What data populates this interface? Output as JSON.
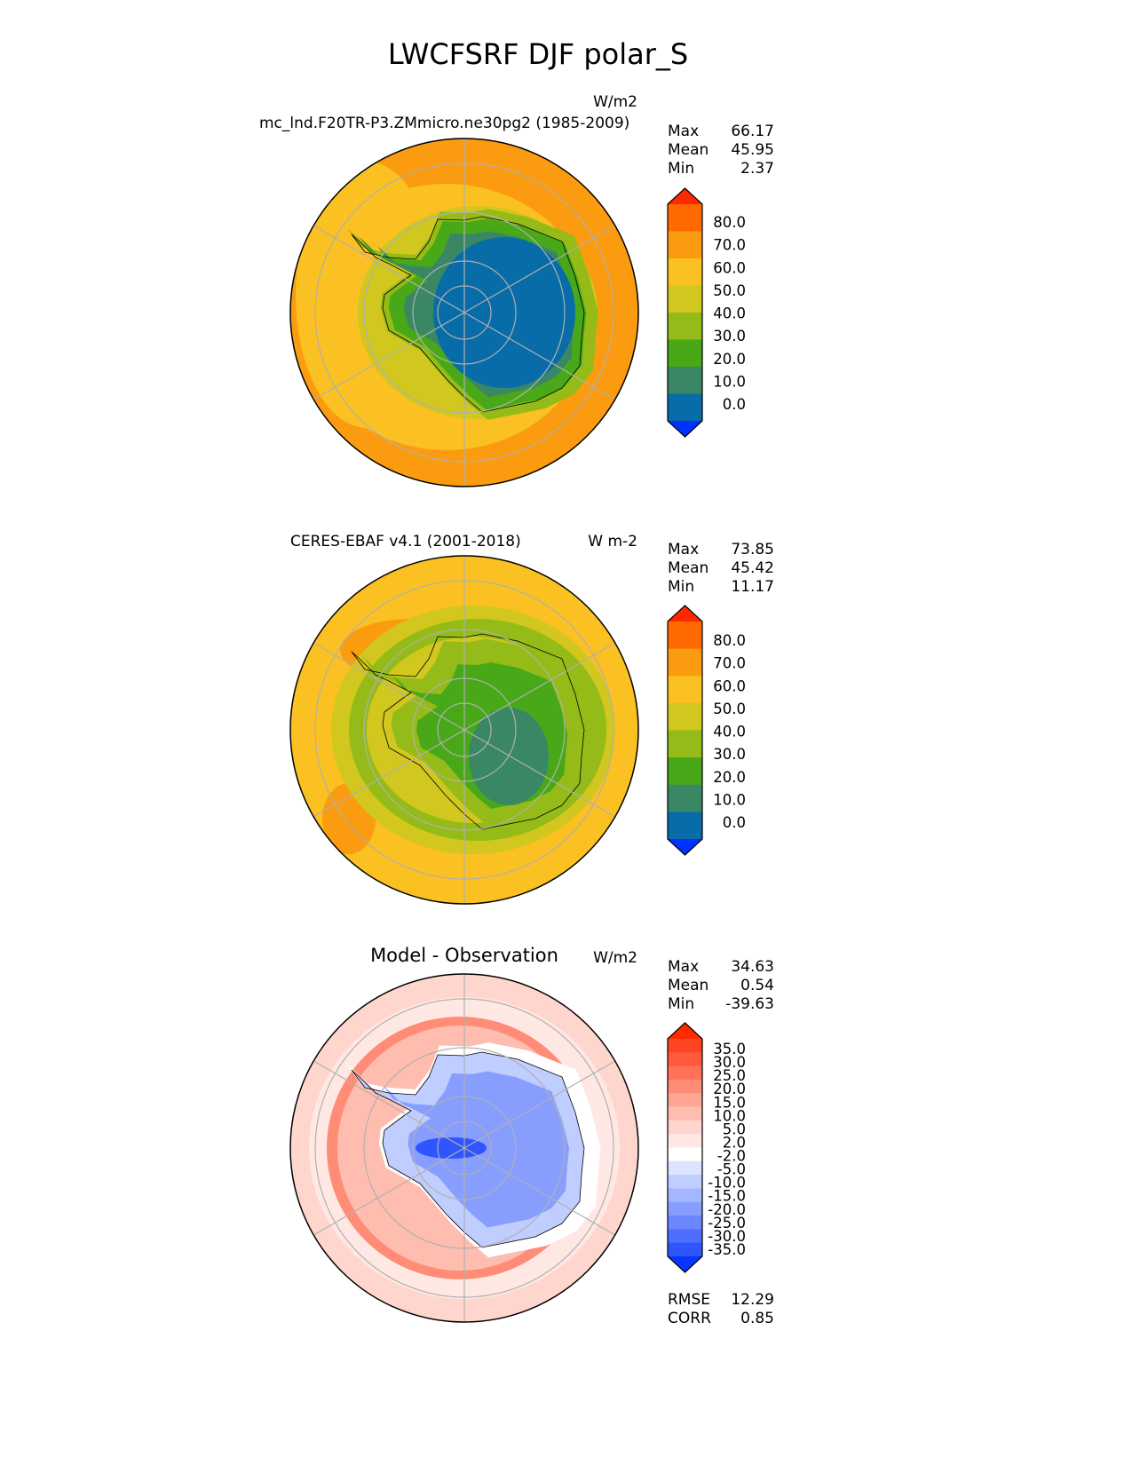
{
  "title": "LWCFSRF DJF polar_S",
  "panels": [
    {
      "left_title": "mc_lnd.F20TR-P3.ZMmicro.ne30pg2 (1985-2009)",
      "units": "W/m2",
      "stats": [
        {
          "label": "Max",
          "value": "66.17"
        },
        {
          "label": "Mean",
          "value": "45.95"
        },
        {
          "label": "Min",
          "value": "2.37"
        }
      ]
    },
    {
      "left_title": "CERES-EBAF v4.1 (2001-2018)",
      "units": "W m-2",
      "stats": [
        {
          "label": "Max",
          "value": "73.85"
        },
        {
          "label": "Mean",
          "value": "45.42"
        },
        {
          "label": "Min",
          "value": "11.17"
        }
      ]
    },
    {
      "center_title": "Model - Observation",
      "units": "W/m2",
      "stats": [
        {
          "label": "Max",
          "value": "34.63"
        },
        {
          "label": "Mean",
          "value": "0.54"
        },
        {
          "label": "Min",
          "value": "-39.63"
        }
      ],
      "metrics": [
        {
          "label": "RMSE",
          "value": "12.29"
        },
        {
          "label": "CORR",
          "value": "0.85"
        }
      ]
    }
  ],
  "colorbars": {
    "field": {
      "labels": [
        "80.0",
        "70.0",
        "60.0",
        "50.0",
        "40.0",
        "30.0",
        "20.0",
        "10.0",
        "0.0"
      ],
      "colors": [
        "#ff2800",
        "#ff6a00",
        "#fb9b0f",
        "#fbc021",
        "#d2c71e",
        "#94bb18",
        "#48a818",
        "#398764",
        "#086ca8",
        "#0032ff"
      ]
    },
    "diff": {
      "labels": [
        "35.0",
        "30.0",
        "25.0",
        "20.0",
        "15.0",
        "10.0",
        "5.0",
        "2.0",
        "-2.0",
        "-5.0",
        "-10.0",
        "-15.0",
        "-20.0",
        "-25.0",
        "-30.0",
        "-35.0"
      ],
      "colors": [
        "#ff2a00",
        "#ff4422",
        "#ff5a3d",
        "#ff7258",
        "#ff8c76",
        "#ffa594",
        "#ffbdb0",
        "#ffd6cd",
        "#ffe8e4",
        "#ffffff",
        "#dde4ff",
        "#c0cdff",
        "#a4b6ff",
        "#879eff",
        "#6b86ff",
        "#4e6eff",
        "#2f55ff",
        "#0a35ff"
      ]
    }
  }
}
